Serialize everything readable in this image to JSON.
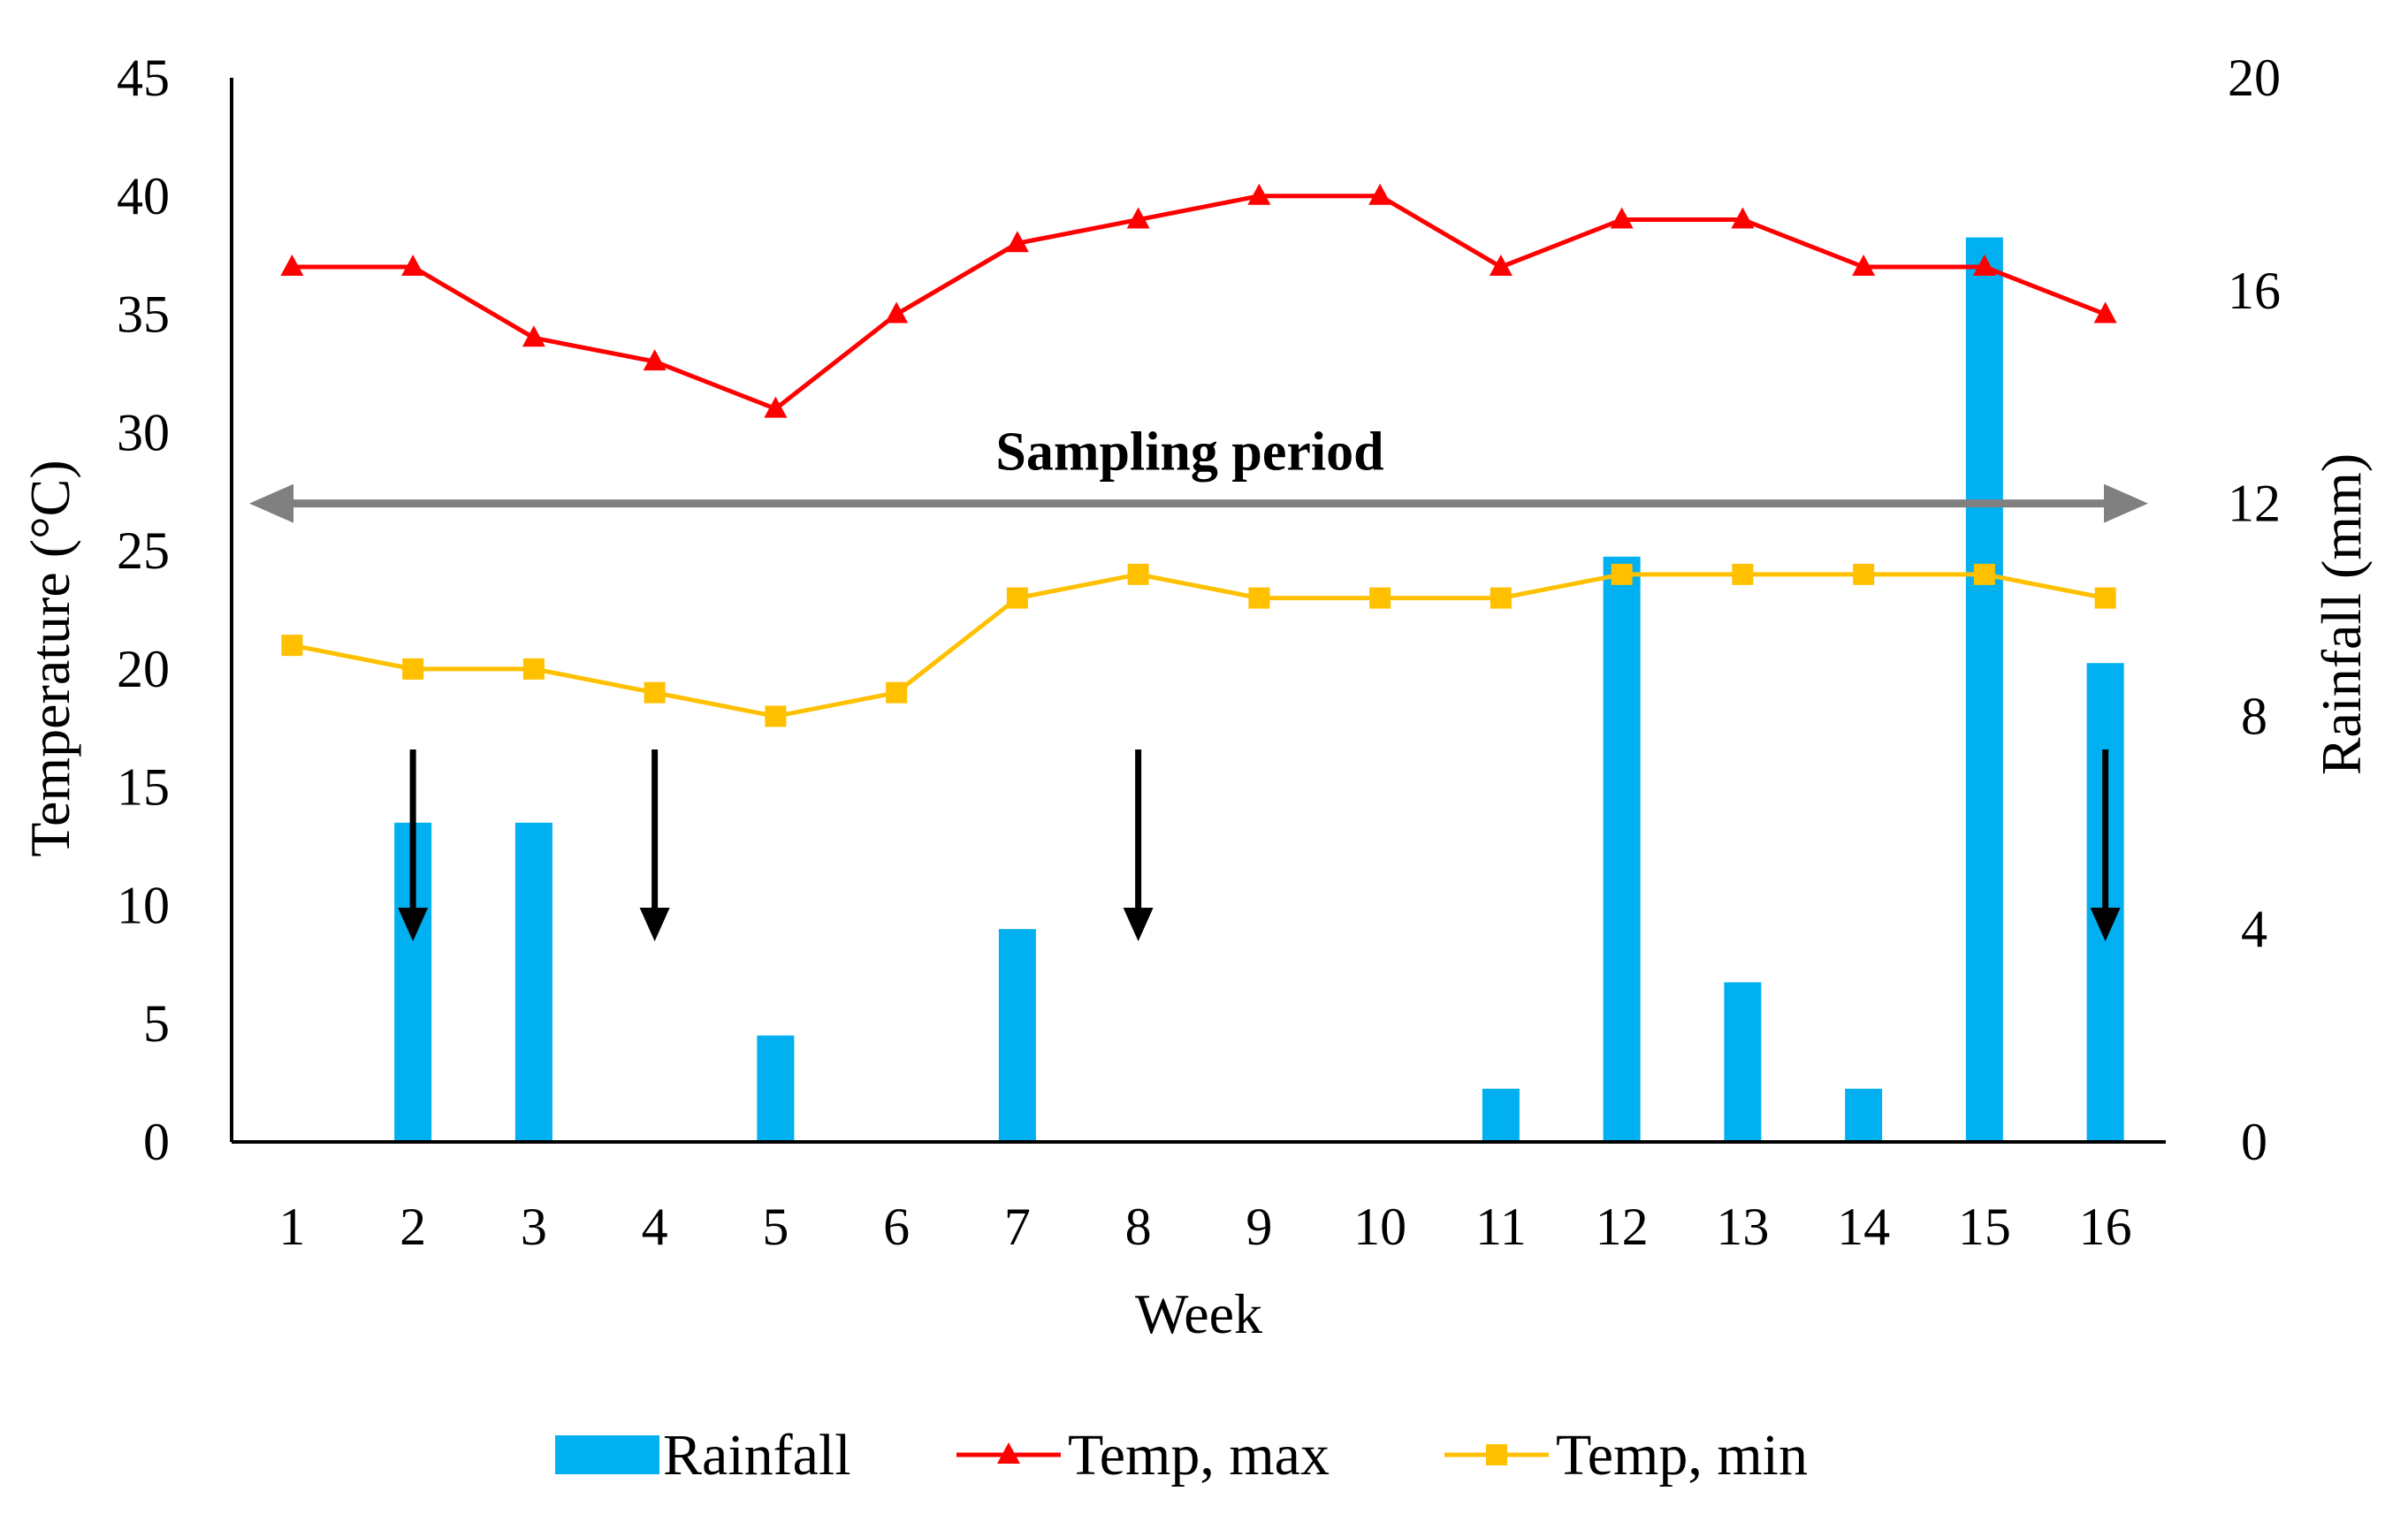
{
  "chart_data": {
    "type": "bar+line",
    "xlabel": "Week",
    "ylabel_left": "Temperature (°C)",
    "ylabel_right": "Rainfall (mm)",
    "ylim_left": [
      0,
      45
    ],
    "ylim_right": [
      0,
      20
    ],
    "yticks_left": [
      0,
      5,
      10,
      15,
      20,
      25,
      30,
      35,
      40,
      45
    ],
    "yticks_right": [
      0,
      4,
      8,
      12,
      16,
      20
    ],
    "categories": [
      "1",
      "2",
      "3",
      "4",
      "5",
      "6",
      "7",
      "8",
      "9",
      "10",
      "11",
      "12",
      "13",
      "14",
      "15",
      "16"
    ],
    "series": [
      {
        "name": "Rainfall",
        "type": "bar",
        "axis": "right",
        "color": "#00b0f0",
        "values": [
          0,
          6,
          6,
          0,
          2,
          0,
          4,
          0,
          0,
          0,
          1,
          11,
          3,
          1,
          17,
          9
        ]
      },
      {
        "name": "Temp, max",
        "type": "line",
        "axis": "left",
        "color": "#ff0000",
        "marker": "triangle",
        "values": [
          37,
          37,
          34,
          33,
          31,
          35,
          38,
          39,
          40,
          40,
          37,
          39,
          39,
          37,
          37,
          35
        ]
      },
      {
        "name": "Temp, min",
        "type": "line",
        "axis": "left",
        "color": "#ffc000",
        "marker": "square",
        "values": [
          21,
          20,
          20,
          19,
          18,
          19,
          23,
          24,
          23,
          23,
          23,
          24,
          24,
          24,
          24,
          23
        ]
      }
    ],
    "annotation": {
      "text": "Sampling period",
      "from_week": 1,
      "to_week": 16,
      "temperature_level": 27,
      "color": "#808080"
    },
    "sampling_arrow_weeks": [
      2,
      4,
      8,
      16
    ],
    "legend": {
      "position": "bottom",
      "items": [
        "Rainfall",
        "Temp, max",
        "Temp, min"
      ]
    }
  }
}
